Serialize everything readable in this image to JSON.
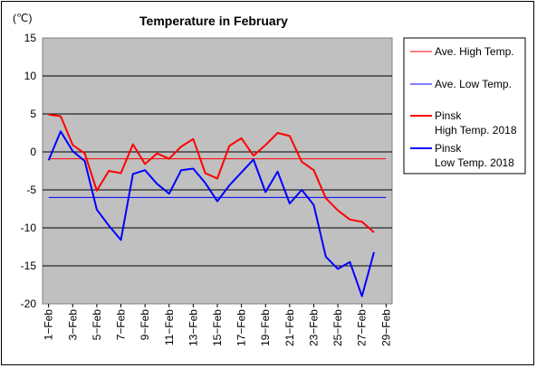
{
  "chart_data": {
    "type": "line",
    "title": "Temperature in February",
    "ylabel": "(℃)",
    "xlabel": "",
    "ylim": [
      -20,
      15
    ],
    "yticks": [
      15,
      10,
      5,
      0,
      -5,
      -10,
      -15,
      -20
    ],
    "grid": true,
    "legend_position": "right",
    "categories": [
      "1-Feb",
      "2-Feb",
      "3-Feb",
      "4-Feb",
      "5-Feb",
      "6-Feb",
      "7-Feb",
      "8-Feb",
      "9-Feb",
      "10-Feb",
      "11-Feb",
      "12-Feb",
      "13-Feb",
      "14-Feb",
      "15-Feb",
      "16-Feb",
      "17-Feb",
      "18-Feb",
      "19-Feb",
      "20-Feb",
      "21-Feb",
      "22-Feb",
      "23-Feb",
      "24-Feb",
      "25-Feb",
      "26-Feb",
      "27-Feb",
      "28-Feb",
      "29-Feb"
    ],
    "xtick_labels": [
      "1−Feb",
      "3−Feb",
      "5−Feb",
      "7−Feb",
      "9−Feb",
      "11−Feb",
      "13−Feb",
      "15−Feb",
      "17−Feb",
      "19−Feb",
      "21−Feb",
      "23−Feb",
      "25−Feb",
      "27−Feb",
      "29−Feb"
    ],
    "series": [
      {
        "name": "Ave. High Temp.",
        "color": "#ff0000",
        "width": 1,
        "values": [
          -0.9,
          -0.9,
          -0.9,
          -0.9,
          -0.9,
          -0.9,
          -0.9,
          -0.9,
          -0.9,
          -0.9,
          -0.9,
          -0.9,
          -0.9,
          -0.9,
          -0.9,
          -0.9,
          -0.9,
          -0.9,
          -0.9,
          -0.9,
          -0.9,
          -0.9,
          -0.9,
          -0.9,
          -0.9,
          -0.9,
          -0.9,
          -0.9,
          -0.9
        ]
      },
      {
        "name": "Ave. Low Temp.",
        "color": "#0000ff",
        "width": 1,
        "values": [
          -6,
          -6,
          -6,
          -6,
          -6,
          -6,
          -6,
          -6,
          -6,
          -6,
          -6,
          -6,
          -6,
          -6,
          -6,
          -6,
          -6,
          -6,
          -6,
          -6,
          -6,
          -6,
          -6,
          -6,
          -6,
          -6,
          -6,
          -6,
          -6
        ]
      },
      {
        "name": "Pinsk High Temp. 2018",
        "label_lines": [
          "Pinsk",
          "High Temp. 2018"
        ],
        "color": "#ff0000",
        "width": 2,
        "values": [
          4.9,
          4.7,
          0.9,
          -0.2,
          -5.1,
          -2.5,
          -2.8,
          1.0,
          -1.6,
          -0.2,
          -0.9,
          0.7,
          1.7,
          -2.8,
          -3.5,
          0.8,
          1.8,
          -0.5,
          0.9,
          2.5,
          2.1,
          -1.3,
          -2.4,
          -6.1,
          -7.7,
          -8.9,
          -9.2,
          -10.6,
          null
        ]
      },
      {
        "name": "Pinsk Low Temp. 2018",
        "label_lines": [
          "Pinsk",
          "Low Temp. 2018"
        ],
        "color": "#0000ff",
        "width": 2,
        "values": [
          -1.1,
          2.7,
          0.1,
          -1.2,
          -7.6,
          -9.7,
          -11.6,
          -2.9,
          -2.4,
          -4.2,
          -5.5,
          -2.4,
          -2.2,
          -4.1,
          -6.5,
          -4.4,
          -2.7,
          -1.0,
          -5.3,
          -2.6,
          -6.8,
          -5.0,
          -7.0,
          -13.8,
          -15.4,
          -14.5,
          -19.0,
          -13.2,
          null
        ]
      }
    ]
  }
}
